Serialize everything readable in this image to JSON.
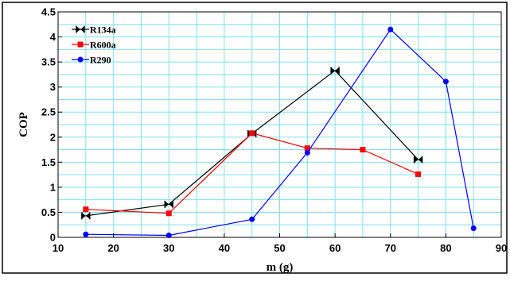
{
  "chart_data": {
    "type": "line",
    "xlabel": "m (g)",
    "ylabel": "COP",
    "xlim": [
      10,
      90
    ],
    "ylim": [
      0,
      4.5
    ],
    "xticks": [
      "10",
      "20",
      "30",
      "40",
      "50",
      "60",
      "70",
      "80",
      "90"
    ],
    "yticks": [
      "0",
      "0.5",
      "1",
      "1.5",
      "2",
      "2.5",
      "3",
      "3.5",
      "4",
      "4.5"
    ],
    "grid": true,
    "legend_position": "top-left",
    "series": [
      {
        "name": "R134a",
        "color": "#000000",
        "marker": "bowtie",
        "points": [
          [
            15,
            0.43
          ],
          [
            30,
            0.66
          ],
          [
            45,
            2.07
          ],
          [
            60,
            3.33
          ],
          [
            75,
            1.55
          ]
        ]
      },
      {
        "name": "R600a",
        "color": "#ff0000",
        "marker": "square",
        "points": [
          [
            15,
            0.56
          ],
          [
            30,
            0.48
          ],
          [
            45,
            2.08
          ],
          [
            55,
            1.78
          ],
          [
            65,
            1.75
          ],
          [
            75,
            1.26
          ]
        ]
      },
      {
        "name": "R290",
        "color": "#0000ff",
        "marker": "circle",
        "points": [
          [
            15,
            0.06
          ],
          [
            30,
            0.04
          ],
          [
            45,
            0.36
          ],
          [
            55,
            1.69
          ],
          [
            70,
            4.15
          ],
          [
            80,
            3.11
          ],
          [
            85,
            0.18
          ]
        ]
      }
    ]
  }
}
